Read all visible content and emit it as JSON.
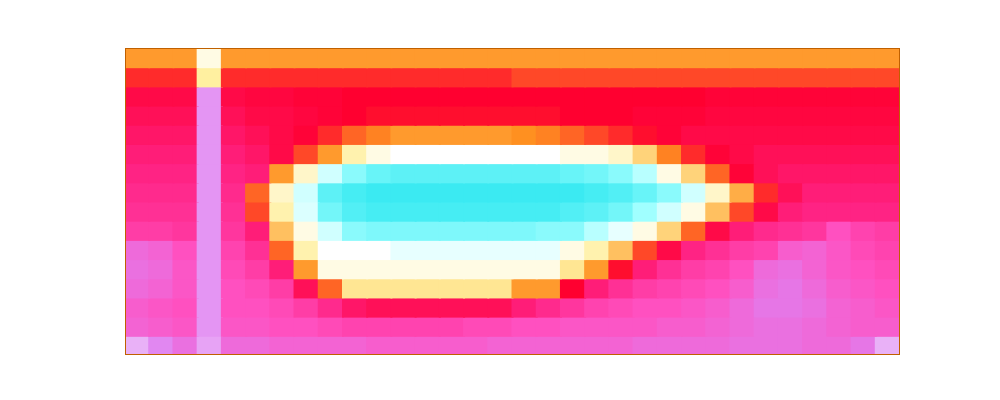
{
  "chart_data": {
    "type": "heatmap",
    "tick_labels": false,
    "cells": [
      [
        66,
        66,
        66,
        80,
        66,
        66,
        66,
        66,
        66,
        66,
        66,
        66,
        66,
        66,
        66,
        66,
        66,
        66,
        66,
        66,
        66,
        66,
        66,
        66,
        66,
        66,
        66,
        66,
        66,
        66,
        66,
        66
      ],
      [
        58,
        58,
        58,
        75,
        58,
        58,
        58,
        58,
        58,
        58,
        58,
        58,
        58,
        58,
        58,
        58,
        60,
        60,
        60,
        60,
        60,
        60,
        60,
        60,
        60,
        60,
        60,
        60,
        60,
        60,
        60,
        60
      ],
      [
        52,
        52,
        52,
        12,
        52,
        53,
        53,
        54,
        54,
        55,
        55,
        55,
        55,
        55,
        55,
        55,
        55,
        55,
        55,
        55,
        55,
        55,
        55,
        55,
        54,
        54,
        54,
        54,
        54,
        54,
        54,
        54
      ],
      [
        50,
        50,
        50,
        12,
        50,
        52,
        52,
        53,
        54,
        55,
        56,
        56,
        56,
        56,
        56,
        56,
        56,
        56,
        55,
        55,
        55,
        54,
        54,
        54,
        53,
        53,
        53,
        53,
        53,
        53,
        53,
        53
      ],
      [
        48,
        48,
        48,
        12,
        48,
        50,
        52,
        54,
        58,
        62,
        64,
        66,
        66,
        66,
        66,
        66,
        65,
        64,
        62,
        60,
        58,
        56,
        54,
        52,
        52,
        52,
        52,
        52,
        52,
        52,
        52,
        52
      ],
      [
        46,
        46,
        46,
        12,
        46,
        48,
        52,
        60,
        66,
        76,
        80,
        82,
        82,
        82,
        82,
        82,
        82,
        82,
        80,
        80,
        78,
        72,
        64,
        58,
        54,
        52,
        50,
        50,
        50,
        50,
        50,
        50
      ],
      [
        44,
        44,
        44,
        12,
        44,
        46,
        66,
        78,
        86,
        92,
        95,
        96,
        96,
        96,
        96,
        96,
        96,
        96,
        95,
        94,
        92,
        88,
        80,
        72,
        62,
        54,
        50,
        48,
        48,
        48,
        48,
        48
      ],
      [
        42,
        42,
        42,
        12,
        42,
        62,
        78,
        86,
        96,
        98,
        99,
        99,
        99,
        99,
        99,
        99,
        99,
        99,
        99,
        98,
        97,
        95,
        92,
        86,
        78,
        68,
        58,
        50,
        46,
        46,
        46,
        46
      ],
      [
        40,
        40,
        40,
        12,
        40,
        60,
        76,
        85,
        94,
        97,
        98,
        98,
        98,
        98,
        98,
        98,
        98,
        98,
        97,
        96,
        94,
        90,
        86,
        80,
        70,
        60,
        52,
        46,
        44,
        44,
        44,
        44
      ],
      [
        36,
        36,
        38,
        12,
        38,
        46,
        70,
        80,
        86,
        92,
        93,
        93,
        93,
        93,
        93,
        93,
        93,
        92,
        92,
        88,
        84,
        80,
        72,
        62,
        52,
        46,
        42,
        40,
        38,
        30,
        34,
        36
      ],
      [
        22,
        24,
        30,
        12,
        34,
        40,
        62,
        76,
        82,
        82,
        82,
        84,
        84,
        84,
        84,
        84,
        84,
        84,
        80,
        76,
        70,
        60,
        52,
        44,
        40,
        36,
        34,
        26,
        24,
        28,
        32,
        34
      ],
      [
        20,
        22,
        28,
        12,
        32,
        36,
        46,
        66,
        80,
        80,
        80,
        80,
        80,
        80,
        80,
        80,
        80,
        80,
        74,
        66,
        56,
        46,
        40,
        36,
        34,
        30,
        22,
        20,
        24,
        28,
        30,
        32
      ],
      [
        22,
        24,
        28,
        12,
        30,
        32,
        36,
        50,
        62,
        74,
        74,
        74,
        74,
        74,
        74,
        74,
        66,
        66,
        55,
        46,
        40,
        36,
        34,
        32,
        30,
        26,
        20,
        18,
        22,
        26,
        28,
        30
      ],
      [
        26,
        28,
        30,
        12,
        30,
        30,
        32,
        36,
        42,
        48,
        50,
        50,
        50,
        50,
        50,
        50,
        46,
        42,
        38,
        34,
        32,
        30,
        30,
        28,
        26,
        22,
        18,
        18,
        20,
        24,
        26,
        28
      ],
      [
        24,
        26,
        28,
        12,
        28,
        28,
        30,
        30,
        32,
        34,
        34,
        34,
        34,
        34,
        32,
        32,
        30,
        30,
        28,
        28,
        28,
        28,
        26,
        26,
        24,
        22,
        20,
        20,
        22,
        24,
        26,
        26
      ],
      [
        8,
        14,
        20,
        10,
        22,
        22,
        24,
        24,
        24,
        24,
        26,
        26,
        26,
        26,
        26,
        24,
        24,
        24,
        24,
        24,
        24,
        22,
        22,
        22,
        22,
        20,
        20,
        20,
        22,
        22,
        18,
        8
      ]
    ]
  }
}
